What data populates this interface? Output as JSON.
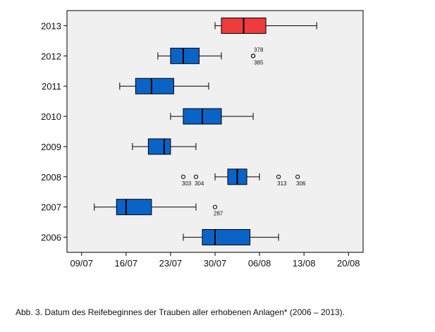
{
  "chart_data": {
    "type": "boxplot",
    "orientation": "horizontal",
    "x_axis_base_date": "2013-07-09",
    "x_ticks": [
      "09/07",
      "16/07",
      "23/07",
      "30/07",
      "06/08",
      "13/08",
      "20/08"
    ],
    "x_tick_values": [
      0,
      7,
      14,
      21,
      28,
      35,
      42
    ],
    "xlim": [
      -2.3,
      44.3
    ],
    "grid": false,
    "series": [
      {
        "category": "2006",
        "color": "#0a64c8",
        "min": 16,
        "q1": 19,
        "median": 21,
        "q3": 26.5,
        "max": 31,
        "outliers": []
      },
      {
        "category": "2007",
        "color": "#0a64c8",
        "min": 2,
        "q1": 5.5,
        "median": 7,
        "q3": 11,
        "max": 18,
        "outliers": [
          {
            "value": 21,
            "label": "287"
          }
        ]
      },
      {
        "category": "2008",
        "color": "#0a64c8",
        "min": 21,
        "q1": 23,
        "median": 24.5,
        "q3": 26,
        "max": 28,
        "outliers": [
          {
            "value": 16,
            "label": "303"
          },
          {
            "value": 18,
            "label": "304"
          },
          {
            "value": 31,
            "label": "313"
          },
          {
            "value": 34,
            "label": "306"
          }
        ]
      },
      {
        "category": "2009",
        "color": "#0a64c8",
        "min": 8,
        "q1": 10.5,
        "median": 13,
        "q3": 14,
        "max": 18,
        "outliers": []
      },
      {
        "category": "2010",
        "color": "#0a64c8",
        "min": 14,
        "q1": 16,
        "median": 19,
        "q3": 22,
        "max": 27,
        "outliers": []
      },
      {
        "category": "2011",
        "color": "#0a64c8",
        "min": 6,
        "q1": 8.5,
        "median": 11,
        "q3": 14.5,
        "max": 20,
        "outliers": []
      },
      {
        "category": "2012",
        "color": "#0a64c8",
        "min": 12,
        "q1": 14,
        "median": 16,
        "q3": 18.5,
        "max": 22,
        "outliers": [
          {
            "value": 27,
            "label": "378"
          },
          {
            "value": 27,
            "label": "385"
          }
        ]
      },
      {
        "category": "2013",
        "color": "#ee3b3b",
        "min": 21,
        "q1": 22,
        "median": 25.5,
        "q3": 29,
        "max": 37,
        "outliers": []
      }
    ]
  },
  "caption": "Abb. 3. Datum des Reifebeginnes der Trauben aller erhobenen Anlagen* (2006 – 2013)."
}
